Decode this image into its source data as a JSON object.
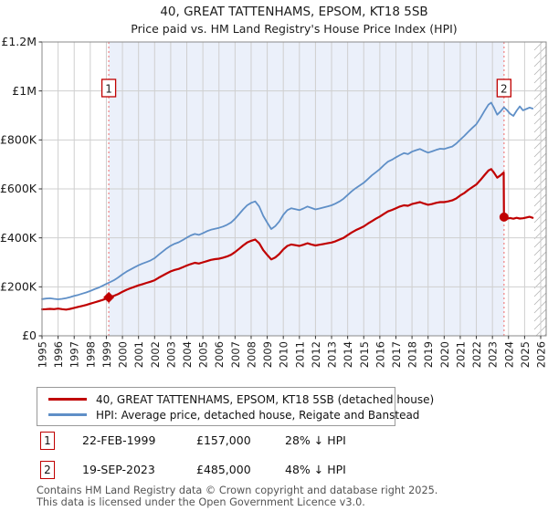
{
  "title": "40, GREAT TATTENHAMS, EPSOM, KT18 5SB",
  "subtitle": "Price paid vs. HM Land Registry's House Price Index (HPI)",
  "footer": {
    "line1": "Contains HM Land Registry data © Crown copyright and database right 2025.",
    "line2": "This data is licensed under the Open Government Licence v3.0."
  },
  "colors": {
    "price_line": "#c00000",
    "hpi_line": "#5f8fc7",
    "event_line": "#f08080",
    "shading": "#ebf0fa",
    "grid": "#cfcfcf",
    "border": "#8a8a8a",
    "hatch": "#b5b5b5",
    "marker_box_border": "#c00000",
    "tick_text": "#1a1a1a"
  },
  "chart_data": {
    "type": "line",
    "title": "40, GREAT TATTENHAMS, EPSOM, KT18 5SB — Price paid vs. HPI",
    "y_unit": "GBP thousands",
    "x_axis": {
      "range": [
        1995,
        2026.35
      ],
      "ticks": [
        1995,
        1996,
        1997,
        1998,
        1999,
        2000,
        2001,
        2002,
        2003,
        2004,
        2005,
        2006,
        2007,
        2008,
        2009,
        2010,
        2011,
        2012,
        2013,
        2014,
        2015,
        2016,
        2017,
        2018,
        2019,
        2020,
        2021,
        2022,
        2023,
        2024,
        2025,
        2026
      ]
    },
    "y_axis": {
      "range": [
        0,
        1200
      ],
      "tick_values": [
        0,
        200,
        400,
        600,
        800,
        1000,
        1200
      ],
      "tick_labels": [
        "£0",
        "£200K",
        "£400K",
        "£600K",
        "£800K",
        "£1M",
        "£1.2M"
      ]
    },
    "shaded_span": [
      1999.15,
      2023.72
    ],
    "hatch_span": [
      2025.6,
      2026.35
    ],
    "grid": true,
    "legend_position": "below",
    "series": [
      {
        "name": "40, GREAT TATTENHAMS, EPSOM, KT18 5SB (detached house)",
        "x": [
          1995,
          1995.25,
          1995.5,
          1995.75,
          1996,
          1996.25,
          1996.5,
          1996.75,
          1997,
          1997.25,
          1997.5,
          1997.75,
          1998,
          1998.25,
          1998.5,
          1998.75,
          1999,
          1999.15,
          1999.5,
          1999.75,
          2000,
          2000.25,
          2000.5,
          2000.75,
          2001,
          2001.25,
          2001.5,
          2001.75,
          2002,
          2002.25,
          2002.5,
          2002.75,
          2003,
          2003.25,
          2003.5,
          2003.75,
          2004,
          2004.25,
          2004.5,
          2004.75,
          2005,
          2005.25,
          2005.5,
          2005.75,
          2006,
          2006.25,
          2006.5,
          2006.75,
          2007,
          2007.25,
          2007.5,
          2007.75,
          2008,
          2008.25,
          2008.5,
          2008.75,
          2009,
          2009.25,
          2009.5,
          2009.75,
          2010,
          2010.25,
          2010.5,
          2010.75,
          2011,
          2011.25,
          2011.5,
          2011.75,
          2012,
          2012.25,
          2012.5,
          2012.75,
          2013,
          2013.25,
          2013.5,
          2013.75,
          2014,
          2014.25,
          2014.5,
          2014.75,
          2015,
          2015.25,
          2015.5,
          2015.75,
          2016,
          2016.25,
          2016.5,
          2016.75,
          2017,
          2017.25,
          2017.5,
          2017.75,
          2018,
          2018.25,
          2018.5,
          2018.75,
          2019,
          2019.25,
          2019.5,
          2019.75,
          2020,
          2020.25,
          2020.5,
          2020.75,
          2021,
          2021.25,
          2021.5,
          2021.75,
          2022,
          2022.25,
          2022.5,
          2022.75,
          2022.92,
          2023.1,
          2023.3,
          2023.5,
          2023.7,
          2023.72,
          2023.9,
          2024.1,
          2024.3,
          2024.5,
          2024.7,
          2024.9,
          2025.1,
          2025.3,
          2025.5
        ],
        "values": [
          108,
          109,
          110,
          109,
          111,
          109,
          107,
          110,
          114,
          118,
          122,
          126,
          131,
          136,
          141,
          146,
          152,
          157,
          164,
          171,
          180,
          188,
          194,
          200,
          206,
          211,
          216,
          221,
          227,
          237,
          246,
          255,
          263,
          269,
          273,
          280,
          287,
          293,
          298,
          295,
          300,
          305,
          310,
          313,
          315,
          319,
          324,
          331,
          342,
          355,
          369,
          381,
          388,
          393,
          378,
          350,
          330,
          312,
          320,
          334,
          353,
          367,
          373,
          370,
          367,
          372,
          378,
          373,
          369,
          372,
          375,
          378,
          381,
          386,
          393,
          400,
          411,
          422,
          431,
          439,
          447,
          458,
          468,
          478,
          487,
          498,
          508,
          514,
          521,
          528,
          533,
          531,
          538,
          542,
          546,
          540,
          535,
          538,
          543,
          546,
          546,
          549,
          553,
          561,
          573,
          583,
          596,
          607,
          618,
          636,
          656,
          675,
          681,
          666,
          646,
          655,
          667,
          485,
          478,
          481,
          478,
          482,
          479,
          480,
          483,
          486,
          482
        ]
      },
      {
        "name": "HPI: Average price, detached house, Reigate and Banstead",
        "x": [
          1995,
          1995.25,
          1995.5,
          1995.75,
          1996,
          1996.25,
          1996.5,
          1996.75,
          1997,
          1997.25,
          1997.5,
          1997.75,
          1998,
          1998.25,
          1998.5,
          1998.75,
          1999,
          1999.25,
          1999.5,
          1999.75,
          2000,
          2000.25,
          2000.5,
          2000.75,
          2001,
          2001.25,
          2001.5,
          2001.75,
          2002,
          2002.25,
          2002.5,
          2002.75,
          2003,
          2003.25,
          2003.5,
          2003.75,
          2004,
          2004.25,
          2004.5,
          2004.75,
          2005,
          2005.25,
          2005.5,
          2005.75,
          2006,
          2006.25,
          2006.5,
          2006.75,
          2007,
          2007.25,
          2007.5,
          2007.75,
          2008,
          2008.25,
          2008.5,
          2008.75,
          2009,
          2009.25,
          2009.5,
          2009.75,
          2010,
          2010.25,
          2010.5,
          2010.75,
          2011,
          2011.25,
          2011.5,
          2011.75,
          2012,
          2012.25,
          2012.5,
          2012.75,
          2013,
          2013.25,
          2013.5,
          2013.75,
          2014,
          2014.25,
          2014.5,
          2014.75,
          2015,
          2015.25,
          2015.5,
          2015.75,
          2016,
          2016.25,
          2016.5,
          2016.75,
          2017,
          2017.25,
          2017.5,
          2017.75,
          2018,
          2018.25,
          2018.5,
          2018.75,
          2019,
          2019.25,
          2019.5,
          2019.75,
          2020,
          2020.25,
          2020.5,
          2020.75,
          2021,
          2021.25,
          2021.5,
          2021.75,
          2022,
          2022.25,
          2022.5,
          2022.75,
          2022.92,
          2023.1,
          2023.3,
          2023.5,
          2023.72,
          2023.9,
          2024.1,
          2024.3,
          2024.5,
          2024.7,
          2024.9,
          2025.1,
          2025.3,
          2025.5
        ],
        "values": [
          150,
          152,
          153,
          151,
          149,
          151,
          154,
          158,
          163,
          167,
          172,
          177,
          183,
          190,
          196,
          204,
          212,
          220,
          228,
          239,
          251,
          262,
          271,
          280,
          288,
          295,
          301,
          308,
          317,
          331,
          344,
          357,
          368,
          376,
          382,
          391,
          401,
          410,
          416,
          412,
          419,
          427,
          433,
          437,
          441,
          446,
          453,
          463,
          478,
          497,
          516,
          533,
          543,
          549,
          528,
          490,
          462,
          436,
          448,
          467,
          494,
          513,
          521,
          517,
          513,
          520,
          528,
          522,
          516,
          520,
          524,
          528,
          533,
          540,
          549,
          560,
          575,
          590,
          603,
          614,
          625,
          640,
          655,
          668,
          681,
          697,
          711,
          719,
          729,
          738,
          746,
          742,
          752,
          758,
          763,
          755,
          748,
          753,
          759,
          764,
          763,
          768,
          773,
          785,
          801,
          816,
          833,
          849,
          864,
          890,
          918,
          944,
          952,
          931,
          903,
          916,
          933,
          922,
          907,
          898,
          919,
          937,
          921,
          926,
          932,
          928
        ]
      }
    ],
    "events": [
      {
        "label": "1",
        "x": 1999.15,
        "value": 157,
        "marker": "diamond",
        "date": "22-FEB-1999",
        "price": "£157,000",
        "vs_hpi": "28% ↓ HPI"
      },
      {
        "label": "2",
        "x": 2023.72,
        "value": 485,
        "marker": "circle",
        "date": "19-SEP-2023",
        "price": "£485,000",
        "vs_hpi": "48% ↓ HPI"
      }
    ]
  }
}
